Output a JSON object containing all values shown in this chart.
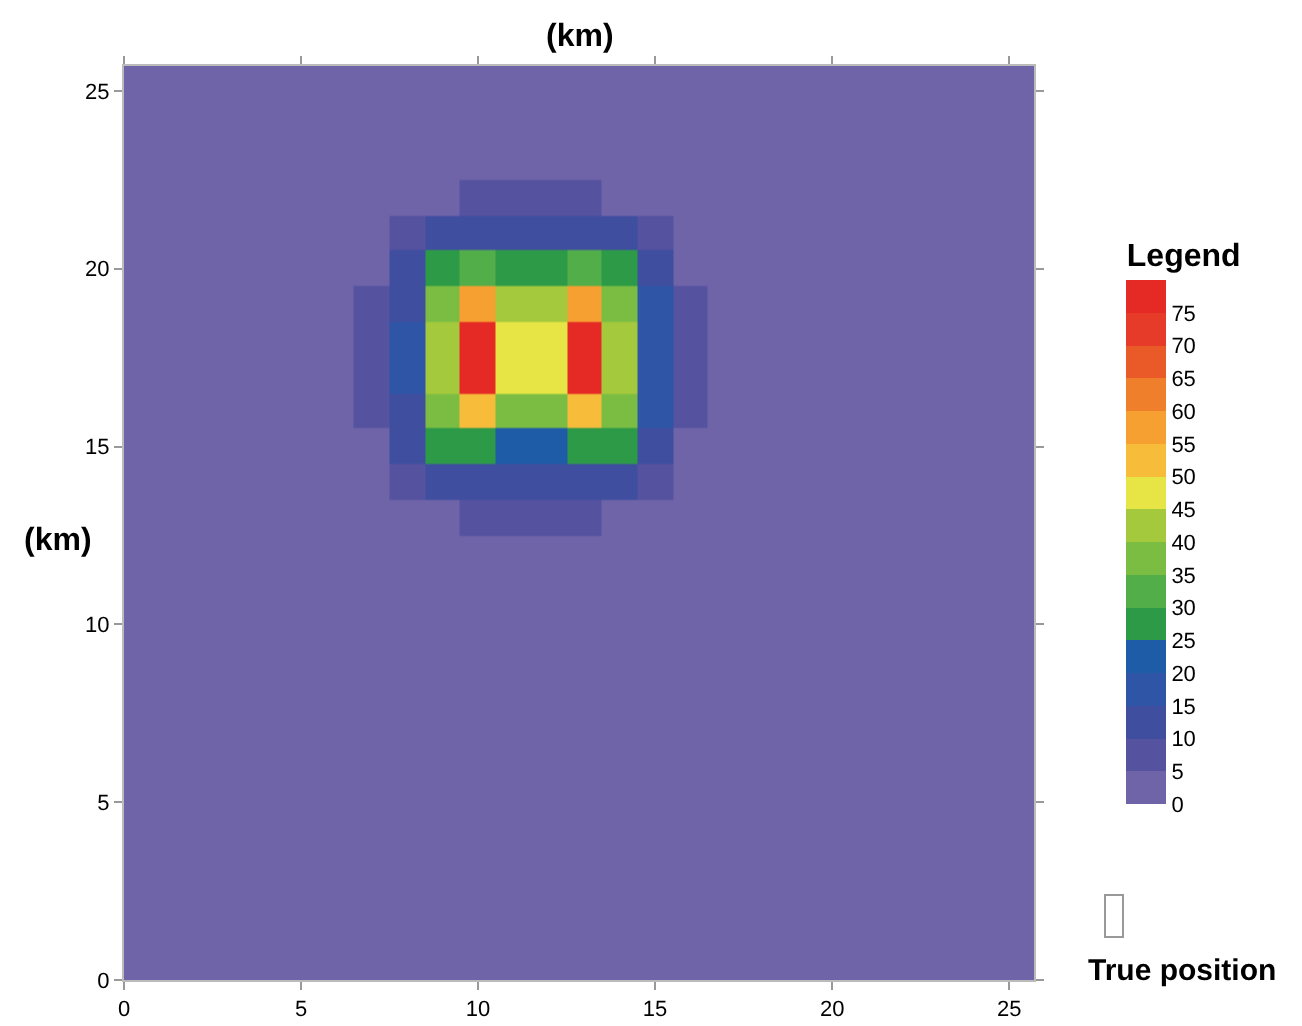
{
  "chart_data": {
    "type": "heatmap",
    "xlabel": "(km)",
    "ylabel": "(km)",
    "clabel": "Legend",
    "x": [
      0,
      5,
      6,
      7,
      8,
      9,
      10,
      11,
      12,
      13,
      14,
      15,
      16,
      17,
      18,
      25.7
    ],
    "y": [
      25.7,
      23,
      22,
      21,
      20,
      19,
      18,
      17,
      16,
      15,
      14,
      13,
      12,
      0
    ],
    "cells": [
      [
        0,
        0,
        0,
        0,
        0,
        0,
        0,
        0,
        0,
        0,
        0,
        0,
        0,
        0,
        0,
        0
      ],
      [
        0,
        0,
        0,
        0,
        0,
        0,
        0,
        0,
        0,
        0,
        0,
        0,
        0,
        0,
        0,
        0
      ],
      [
        0,
        0,
        0,
        0,
        2,
        4,
        5,
        5,
        5,
        5,
        4,
        2,
        0,
        0,
        0,
        0
      ],
      [
        0,
        0,
        0,
        2,
        6,
        10,
        13,
        13,
        13,
        13,
        10,
        6,
        2,
        0,
        0,
        0
      ],
      [
        0,
        0,
        0,
        4,
        10,
        25,
        32,
        28,
        28,
        32,
        25,
        12,
        4,
        0,
        0,
        0
      ],
      [
        0,
        0,
        1,
        5,
        14,
        35,
        55,
        40,
        40,
        55,
        35,
        16,
        5,
        1,
        0,
        0
      ],
      [
        0,
        0,
        1,
        5,
        16,
        40,
        77,
        45,
        45,
        77,
        40,
        18,
        5,
        1,
        0,
        0
      ],
      [
        0,
        0,
        1,
        5,
        16,
        40,
        75,
        45,
        45,
        75,
        40,
        18,
        5,
        1,
        0,
        0
      ],
      [
        0,
        0,
        1,
        5,
        14,
        35,
        50,
        38,
        38,
        50,
        35,
        16,
        5,
        1,
        0,
        0
      ],
      [
        0,
        0,
        0,
        4,
        10,
        25,
        28,
        24,
        24,
        28,
        25,
        12,
        4,
        0,
        0,
        0
      ],
      [
        0,
        0,
        0,
        2,
        6,
        10,
        12,
        12,
        12,
        12,
        10,
        6,
        2,
        0,
        0,
        0
      ],
      [
        0,
        0,
        0,
        0,
        2,
        4,
        5,
        5,
        5,
        5,
        4,
        2,
        0,
        0,
        0,
        0
      ],
      [
        0,
        0,
        0,
        0,
        0,
        0,
        0,
        0,
        0,
        0,
        0,
        0,
        0,
        0,
        0,
        0
      ],
      [
        0,
        0,
        0,
        0,
        0,
        0,
        0,
        0,
        0,
        0,
        0,
        0,
        0,
        0,
        0,
        0
      ]
    ],
    "colors": [
      "#6f64a8",
      "#5552a0",
      "#404ea0",
      "#2f55a6",
      "#1f5ca8",
      "#2d9a48",
      "#52ae48",
      "#7bbd42",
      "#a5c93d",
      "#e6e545",
      "#f7bd3a",
      "#f5a031",
      "#ef7f2a",
      "#ea5a29",
      "#e63b28",
      "#e52a26"
    ],
    "clim": [
      0,
      80
    ],
    "cticks": [
      0,
      5,
      10,
      15,
      20,
      25,
      30,
      35,
      40,
      45,
      50,
      55,
      60,
      65,
      70,
      75
    ],
    "xlim": [
      0,
      25.7
    ],
    "ylim": [
      0,
      25.7
    ],
    "xticks": [
      0,
      5,
      10,
      15,
      20,
      25
    ],
    "yticks": [
      0,
      5,
      10,
      15,
      20,
      25
    ],
    "annotations": [
      "True position"
    ]
  }
}
